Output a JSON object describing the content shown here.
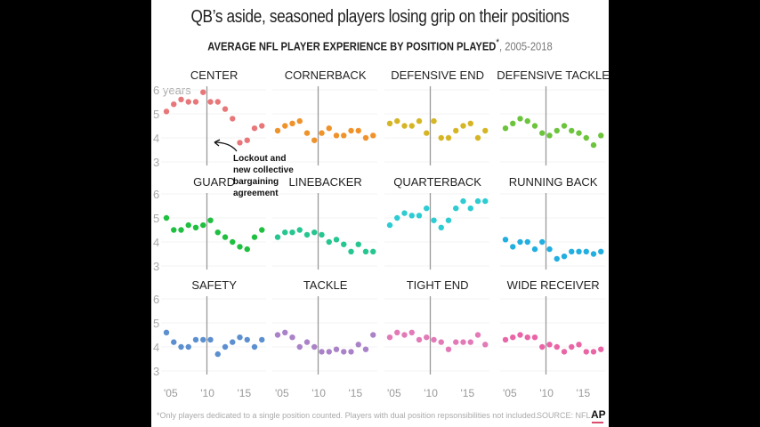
{
  "title": "QB’s aside, seasoned players losing grip on their positions",
  "subtitle_bold": "AVERAGE NFL PLAYER EXPERIENCE BY POSITION PLAYED",
  "subtitle_asterisk": "*",
  "subtitle_years": ", 2005-2018",
  "footnote": "*Only players dedicated to a single position counted. Players with dual position repsonsibilities not included.",
  "source": "SOURCE: NFL",
  "logo": "AP",
  "annotation": [
    "Lockout and",
    "new collective",
    "bargaining",
    "agreement"
  ],
  "chart_data": {
    "type": "scatter",
    "title": "AVERAGE NFL PLAYER EXPERIENCE BY POSITION PLAYED, 2005-2018",
    "xlabel": "",
    "ylabel": "years",
    "x": [
      2005,
      2006,
      2007,
      2008,
      2009,
      2010,
      2011,
      2012,
      2013,
      2014,
      2015,
      2016,
      2017,
      2018
    ],
    "xticks": [
      "'05",
      "'10",
      "'15"
    ],
    "xtick_values": [
      2005,
      2010,
      2015
    ],
    "yticks": [
      "6 years",
      "5",
      "4",
      "3"
    ],
    "ytick_values": [
      6,
      5,
      4,
      3
    ],
    "ylim": [
      3,
      6
    ],
    "reference_line_x": 2011,
    "grid": false,
    "series": [
      {
        "name": "CENTER",
        "color": "#e8777a",
        "values": [
          5.1,
          5.4,
          5.6,
          5.5,
          5.5,
          5.9,
          5.5,
          5.5,
          5.2,
          4.8,
          3.8,
          3.9,
          4.4,
          4.5
        ]
      },
      {
        "name": "CORNERBACK",
        "color": "#f0922a",
        "values": [
          4.3,
          4.5,
          4.6,
          4.7,
          4.2,
          3.9,
          4.2,
          4.4,
          4.1,
          4.1,
          4.3,
          4.3,
          4.0,
          4.1
        ]
      },
      {
        "name": "DEFENSIVE END",
        "color": "#d6b524",
        "values": [
          4.6,
          4.7,
          4.5,
          4.5,
          4.7,
          4.2,
          4.7,
          4.0,
          4.0,
          4.3,
          4.5,
          4.6,
          4.0,
          4.3
        ]
      },
      {
        "name": "DEFENSIVE TACKLE",
        "color": "#6cc43c",
        "values": [
          4.4,
          4.6,
          4.8,
          4.7,
          4.5,
          4.2,
          4.1,
          4.3,
          4.5,
          4.3,
          4.2,
          4.0,
          3.7,
          4.1
        ]
      },
      {
        "name": "GUARD",
        "color": "#1fbf3f",
        "values": [
          5.0,
          4.5,
          4.5,
          4.7,
          4.6,
          4.7,
          4.9,
          4.4,
          4.2,
          4.0,
          3.8,
          3.7,
          4.2,
          4.5
        ]
      },
      {
        "name": "LINEBACKER",
        "color": "#25c690",
        "values": [
          4.2,
          4.4,
          4.4,
          4.5,
          4.3,
          4.4,
          4.3,
          4.0,
          4.1,
          3.9,
          3.6,
          3.9,
          3.6,
          3.6
        ]
      },
      {
        "name": "QUARTERBACK",
        "color": "#2cccd2",
        "values": [
          4.7,
          5.0,
          5.2,
          5.1,
          5.1,
          5.4,
          4.9,
          4.6,
          4.9,
          5.4,
          5.7,
          5.4,
          5.7,
          5.7
        ]
      },
      {
        "name": "RUNNING BACK",
        "color": "#21aee0",
        "values": [
          4.1,
          3.8,
          4.0,
          4.0,
          3.7,
          4.0,
          3.7,
          3.3,
          3.4,
          3.6,
          3.6,
          3.6,
          3.5,
          3.6
        ]
      },
      {
        "name": "SAFETY",
        "color": "#5b8fd0",
        "values": [
          4.6,
          4.2,
          4.0,
          4.0,
          4.3,
          4.3,
          4.3,
          3.7,
          4.0,
          4.2,
          4.4,
          4.3,
          4.0,
          4.3
        ]
      },
      {
        "name": "TACKLE",
        "color": "#a982c8",
        "values": [
          4.5,
          4.6,
          4.4,
          4.0,
          4.2,
          4.0,
          3.8,
          3.8,
          3.9,
          3.8,
          3.8,
          4.1,
          3.9,
          4.5
        ]
      },
      {
        "name": "TIGHT END",
        "color": "#e37ab8",
        "values": [
          4.4,
          4.6,
          4.5,
          4.6,
          4.3,
          4.4,
          4.3,
          4.2,
          3.9,
          4.2,
          4.2,
          4.2,
          4.5,
          4.1
        ]
      },
      {
        "name": "WIDE RECEIVER",
        "color": "#ea65a6",
        "values": [
          4.3,
          4.4,
          4.5,
          4.4,
          4.4,
          4.0,
          4.1,
          4.0,
          3.8,
          4.0,
          4.1,
          3.8,
          3.8,
          3.9
        ]
      }
    ]
  }
}
